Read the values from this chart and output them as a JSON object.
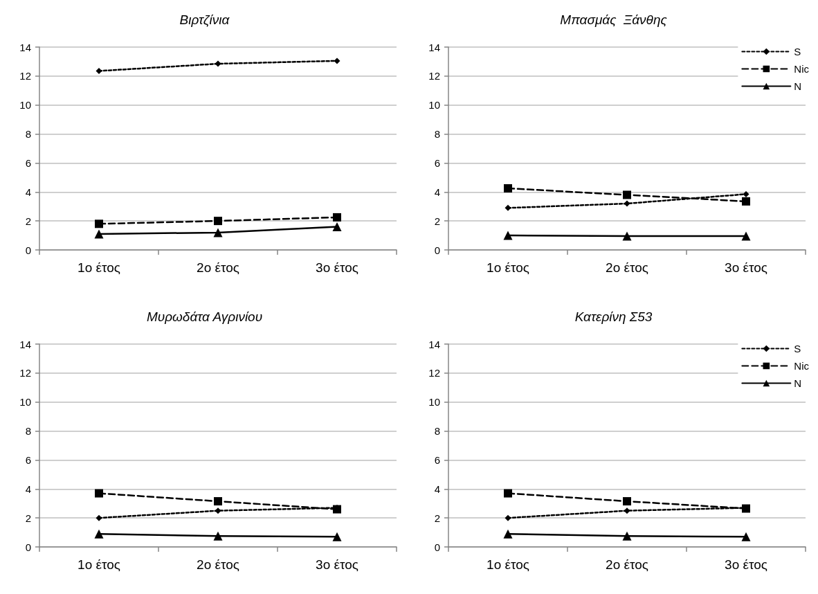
{
  "chart_data": [
    {
      "type": "line",
      "title": "Βιρτζίνια",
      "categories": [
        "1ο έτος",
        "2ο έτος",
        "3ο έτος"
      ],
      "ylim": [
        0,
        14
      ],
      "yticks": [
        0,
        2,
        4,
        6,
        8,
        10,
        12,
        14
      ],
      "grid": "y",
      "legend": false,
      "series": [
        {
          "color": "#000000",
          "marker": "diamond",
          "line_style": "dotted",
          "values": [
            12.35,
            12.85,
            13.05
          ]
        },
        {
          "color": "#000000",
          "marker": "square",
          "line_style": "dashed",
          "values": [
            1.8,
            2.0,
            2.25
          ]
        },
        {
          "color": "#000000",
          "marker": "triangle",
          "line_style": "solid",
          "values": [
            1.1,
            1.2,
            1.6
          ]
        }
      ]
    },
    {
      "type": "line",
      "title": "Μπασμάς  Ξάνθης",
      "categories": [
        "1ο έτος",
        "2ο έτος",
        "3ο έτος"
      ],
      "ylim": [
        0,
        14
      ],
      "yticks": [
        0,
        2,
        4,
        6,
        8,
        10,
        12,
        14
      ],
      "grid": "y",
      "legend": "top right",
      "series": [
        {
          "name": "S",
          "color": "#000000",
          "marker": "diamond",
          "line_style": "dotted",
          "values": [
            2.9,
            3.2,
            3.85
          ]
        },
        {
          "name": "Nic",
          "color": "#000000",
          "marker": "square",
          "line_style": "dashed",
          "values": [
            4.25,
            3.8,
            3.35
          ]
        },
        {
          "name": "N",
          "color": "#000000",
          "marker": "triangle",
          "line_style": "solid",
          "values": [
            1.0,
            0.95,
            0.95
          ]
        }
      ]
    },
    {
      "type": "line",
      "title": "Μυρωδάτα Αγρινίου",
      "categories": [
        "1ο έτος",
        "2ο έτος",
        "3ο έτος"
      ],
      "ylim": [
        0,
        14
      ],
      "yticks": [
        0,
        2,
        4,
        6,
        8,
        10,
        12,
        14
      ],
      "grid": "y",
      "legend": false,
      "series": [
        {
          "color": "#000000",
          "marker": "diamond",
          "line_style": "dotted",
          "values": [
            2.0,
            2.5,
            2.7
          ]
        },
        {
          "color": "#000000",
          "marker": "square",
          "line_style": "dashed",
          "values": [
            3.7,
            3.15,
            2.6
          ]
        },
        {
          "color": "#000000",
          "marker": "triangle",
          "line_style": "solid",
          "values": [
            0.9,
            0.75,
            0.7
          ]
        }
      ]
    },
    {
      "type": "line",
      "title": "Κατερίνη Σ53",
      "categories": [
        "1ο έτος",
        "2ο έτος",
        "3ο έτος"
      ],
      "ylim": [
        0,
        14
      ],
      "yticks": [
        0,
        2,
        4,
        6,
        8,
        10,
        12,
        14
      ],
      "grid": "y",
      "legend": "top right",
      "series": [
        {
          "name": "S",
          "color": "#000000",
          "marker": "diamond",
          "line_style": "dotted",
          "values": [
            2.0,
            2.5,
            2.7
          ]
        },
        {
          "name": "Nic",
          "color": "#000000",
          "marker": "square",
          "line_style": "dashed",
          "values": [
            3.7,
            3.15,
            2.65
          ]
        },
        {
          "name": "N",
          "color": "#000000",
          "marker": "triangle",
          "line_style": "solid",
          "values": [
            0.9,
            0.75,
            0.7
          ]
        }
      ]
    }
  ]
}
